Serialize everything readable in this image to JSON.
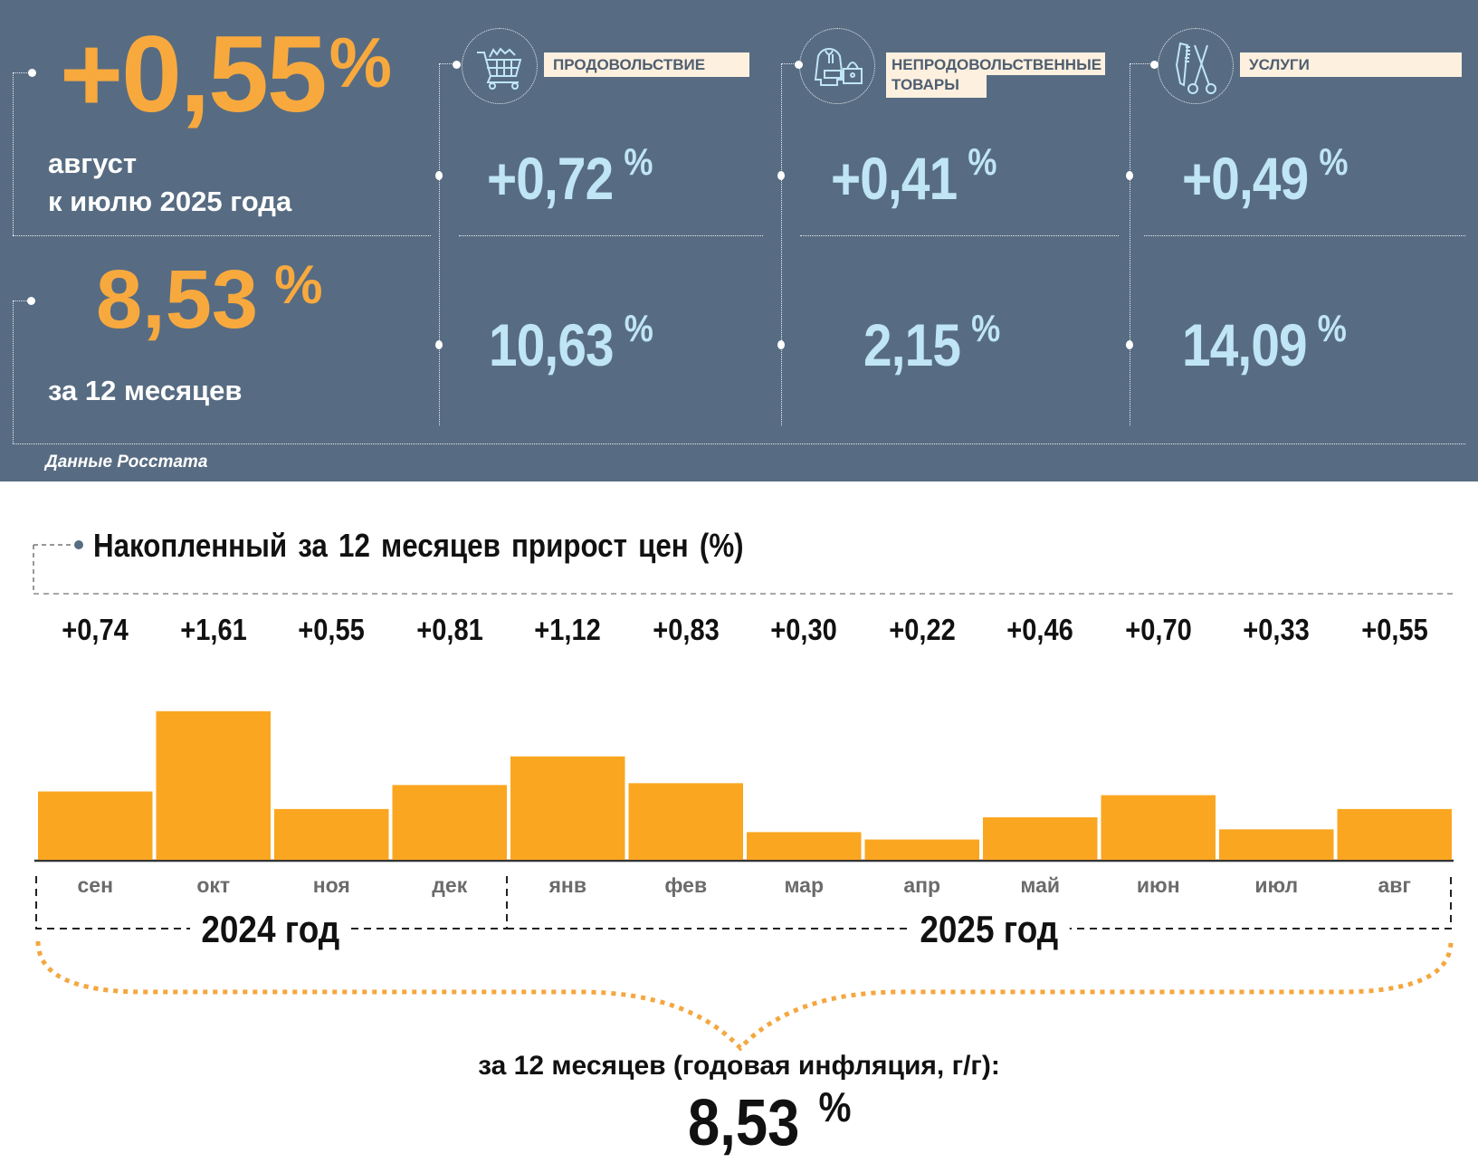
{
  "header": {
    "monthly": {
      "value": "+0,55",
      "unit": "%",
      "label_line1": "август",
      "label_line2": "к июлю 2025 года"
    },
    "annual": {
      "value": "8,53",
      "unit": "%",
      "label": "за 12 месяцев"
    },
    "categories": [
      {
        "icon": "shopping-cart-icon",
        "label": "ПРОДОВОЛЬСТВИЕ",
        "monthly": "+0,72",
        "annual": "10,63",
        "unit": "%"
      },
      {
        "icon": "clothing-bag-icon",
        "label_line1": "НЕПРОДОВОЛЬСТВЕННЫЕ",
        "label_line2": "ТОВАРЫ",
        "monthly": "+0,41",
        "annual": "2,15",
        "unit": "%"
      },
      {
        "icon": "comb-scissors-icon",
        "label": "УСЛУГИ",
        "monthly": "+0,49",
        "annual": "14,09",
        "unit": "%"
      }
    ],
    "source": "Данные Росстата"
  },
  "colors": {
    "panel_bg": "#576c82",
    "accent_orange": "#f8a93e",
    "value_blue": "#c0e5f5",
    "label_bg": "#fdf0df",
    "bar": "#fba620"
  },
  "chart_data": {
    "type": "bar",
    "title": "Накопленный за 12 месяцев прирост цен (%)",
    "categories": [
      "сен",
      "окт",
      "ноя",
      "дек",
      "янв",
      "фев",
      "мар",
      "апр",
      "май",
      "июн",
      "июл",
      "авг"
    ],
    "values": [
      0.74,
      1.61,
      0.55,
      0.81,
      1.12,
      0.83,
      0.3,
      0.22,
      0.46,
      0.7,
      0.33,
      0.55
    ],
    "value_labels": [
      "+0,74",
      "+1,61",
      "+0,55",
      "+0,81",
      "+1,12",
      "+0,83",
      "+0,30",
      "+0,22",
      "+0,46",
      "+0,70",
      "+0,33",
      "+0,55"
    ],
    "year_groups": [
      {
        "label": "2024 год",
        "months": [
          "сен",
          "окт",
          "ноя",
          "дек"
        ]
      },
      {
        "label": "2025 год",
        "months": [
          "янв",
          "фев",
          "мар",
          "апр",
          "май",
          "июн",
          "июл",
          "авг"
        ]
      }
    ],
    "xlabel": "",
    "ylabel": "",
    "ylim": [
      0,
      1.8
    ],
    "grid": false,
    "annual_label": "за 12 месяцев (годовая инфляция, г/г):",
    "annual_value": "8,53",
    "annual_unit": "%"
  }
}
